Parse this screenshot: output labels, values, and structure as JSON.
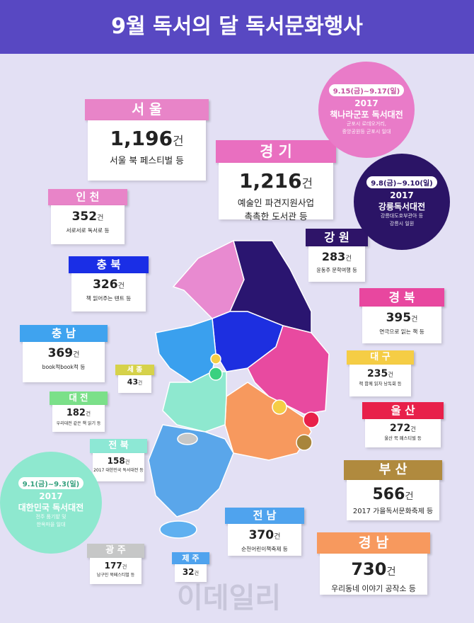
{
  "header": {
    "title": "9월 독서의 달 독서문화행사"
  },
  "regions": [
    {
      "name": "서 울",
      "count": "1,196",
      "unit": "건",
      "description": [
        "서울 북 페스티벌 등"
      ]
    },
    {
      "name": "경 기",
      "count": "1,216",
      "unit": "건",
      "description": [
        "예술인 파견지원사업",
        "촉촉한 도서관 등"
      ]
    },
    {
      "name": "인 천",
      "count": "352",
      "unit": "건",
      "description": [
        "서로서로 독서로 등"
      ]
    },
    {
      "name": "강 원",
      "count": "283",
      "unit": "건",
      "description": [
        "윤동주 문학여행 등"
      ]
    },
    {
      "name": "충 북",
      "count": "326",
      "unit": "건",
      "description": [
        "책 읽어주는 텐트 등"
      ]
    },
    {
      "name": "경 북",
      "count": "395",
      "unit": "건",
      "description": [
        "연극으로 읽는 책 등"
      ]
    },
    {
      "name": "충 남",
      "count": "369",
      "unit": "건",
      "description": [
        "book적book적 등"
      ]
    },
    {
      "name": "대 구",
      "count": "235",
      "unit": "건",
      "description": [
        "책 함께 읽자 낭독회 등"
      ]
    },
    {
      "name": "세 종",
      "count": "43",
      "unit": "건",
      "description": []
    },
    {
      "name": "대 전",
      "count": "182",
      "unit": "건",
      "description": [
        "우리대전 같은 책 읽기 등"
      ]
    },
    {
      "name": "울 산",
      "count": "272",
      "unit": "건",
      "description": [
        "울산 북 페스티벌 등"
      ]
    },
    {
      "name": "전 북",
      "count": "158",
      "unit": "건",
      "description": [
        "2017 대한민국 독서대전 등"
      ]
    },
    {
      "name": "부 산",
      "count": "566",
      "unit": "건",
      "description": [
        "2017 가을독서문화축제 등"
      ]
    },
    {
      "name": "전 남",
      "count": "370",
      "unit": "건",
      "description": [
        "순천어린이책축제 등"
      ]
    },
    {
      "name": "광 주",
      "count": "177",
      "unit": "건",
      "description": [
        "남구민 북페스티벌 등"
      ]
    },
    {
      "name": "경 남",
      "count": "730",
      "unit": "건",
      "description": [
        "우리동네 이야기 공작소 등"
      ]
    },
    {
      "name": "제 주",
      "count": "32",
      "unit": "건",
      "description": []
    }
  ],
  "events": [
    {
      "date": "9.15(금)~9.17(일)",
      "title": [
        "2017",
        "책나라군포 독서대전"
      ],
      "description": [
        "군포시 로데오거리,",
        "중앙공원등 군포시 일대"
      ]
    },
    {
      "date": "9.8(금)~9.10(일)",
      "title": [
        "2017",
        "강릉독서대전"
      ],
      "description": [
        "강릉대도호부관아 등",
        "강릉시 일원"
      ]
    },
    {
      "date": "9.1(금)~9.3(일)",
      "title": [
        "2017",
        "대한민국 독서대전"
      ],
      "description": [
        "전주 품기밭 및",
        "한옥마을 일대"
      ]
    }
  ],
  "watermark": "이데일리"
}
